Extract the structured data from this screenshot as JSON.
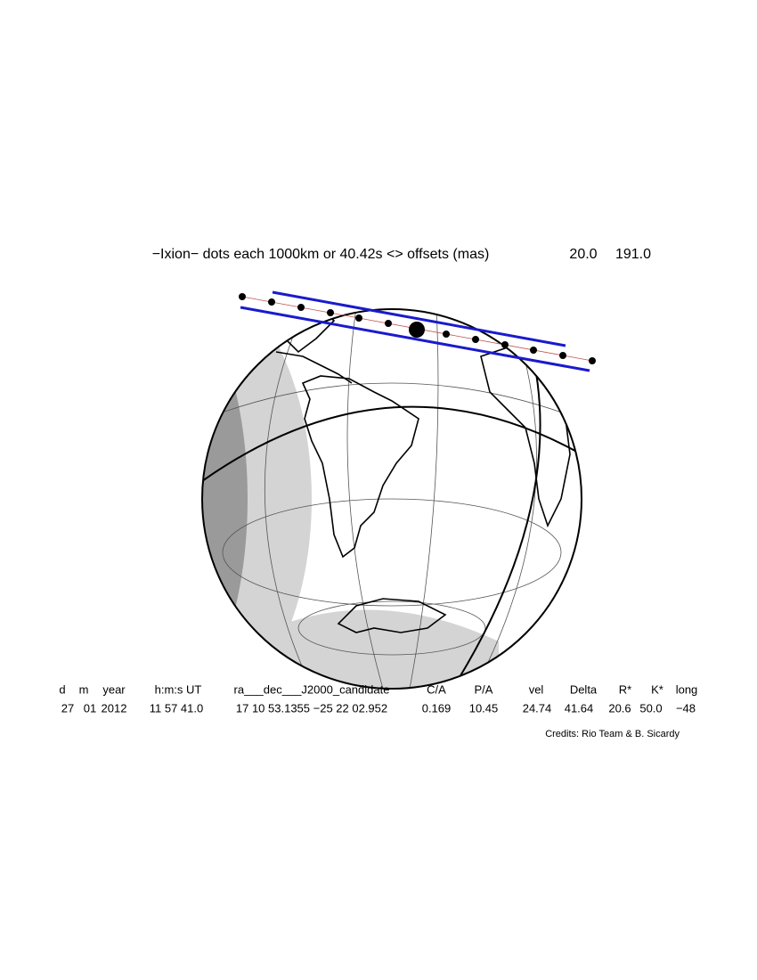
{
  "title": "−Ixion− dots each 1000km or 40.42s <> offsets (mas)",
  "offsets": [
    "20.0",
    "191.0"
  ],
  "table": {
    "headers": [
      "d",
      "m",
      "year",
      "h:m:s UT",
      "ra___dec___J2000_candidate",
      "C/A",
      "P/A",
      "vel",
      "Delta",
      "R*",
      "K*",
      "long"
    ],
    "values": [
      "27",
      "01",
      "2012",
      "11 57 41.0",
      "17 10 53.1355 −25 22 02.952",
      "0.169",
      "10.45",
      "24.74",
      "41.64",
      "20.6",
      "50.0",
      "−48"
    ]
  },
  "credits": "Credits: Rio Team & B. Sicardy"
}
